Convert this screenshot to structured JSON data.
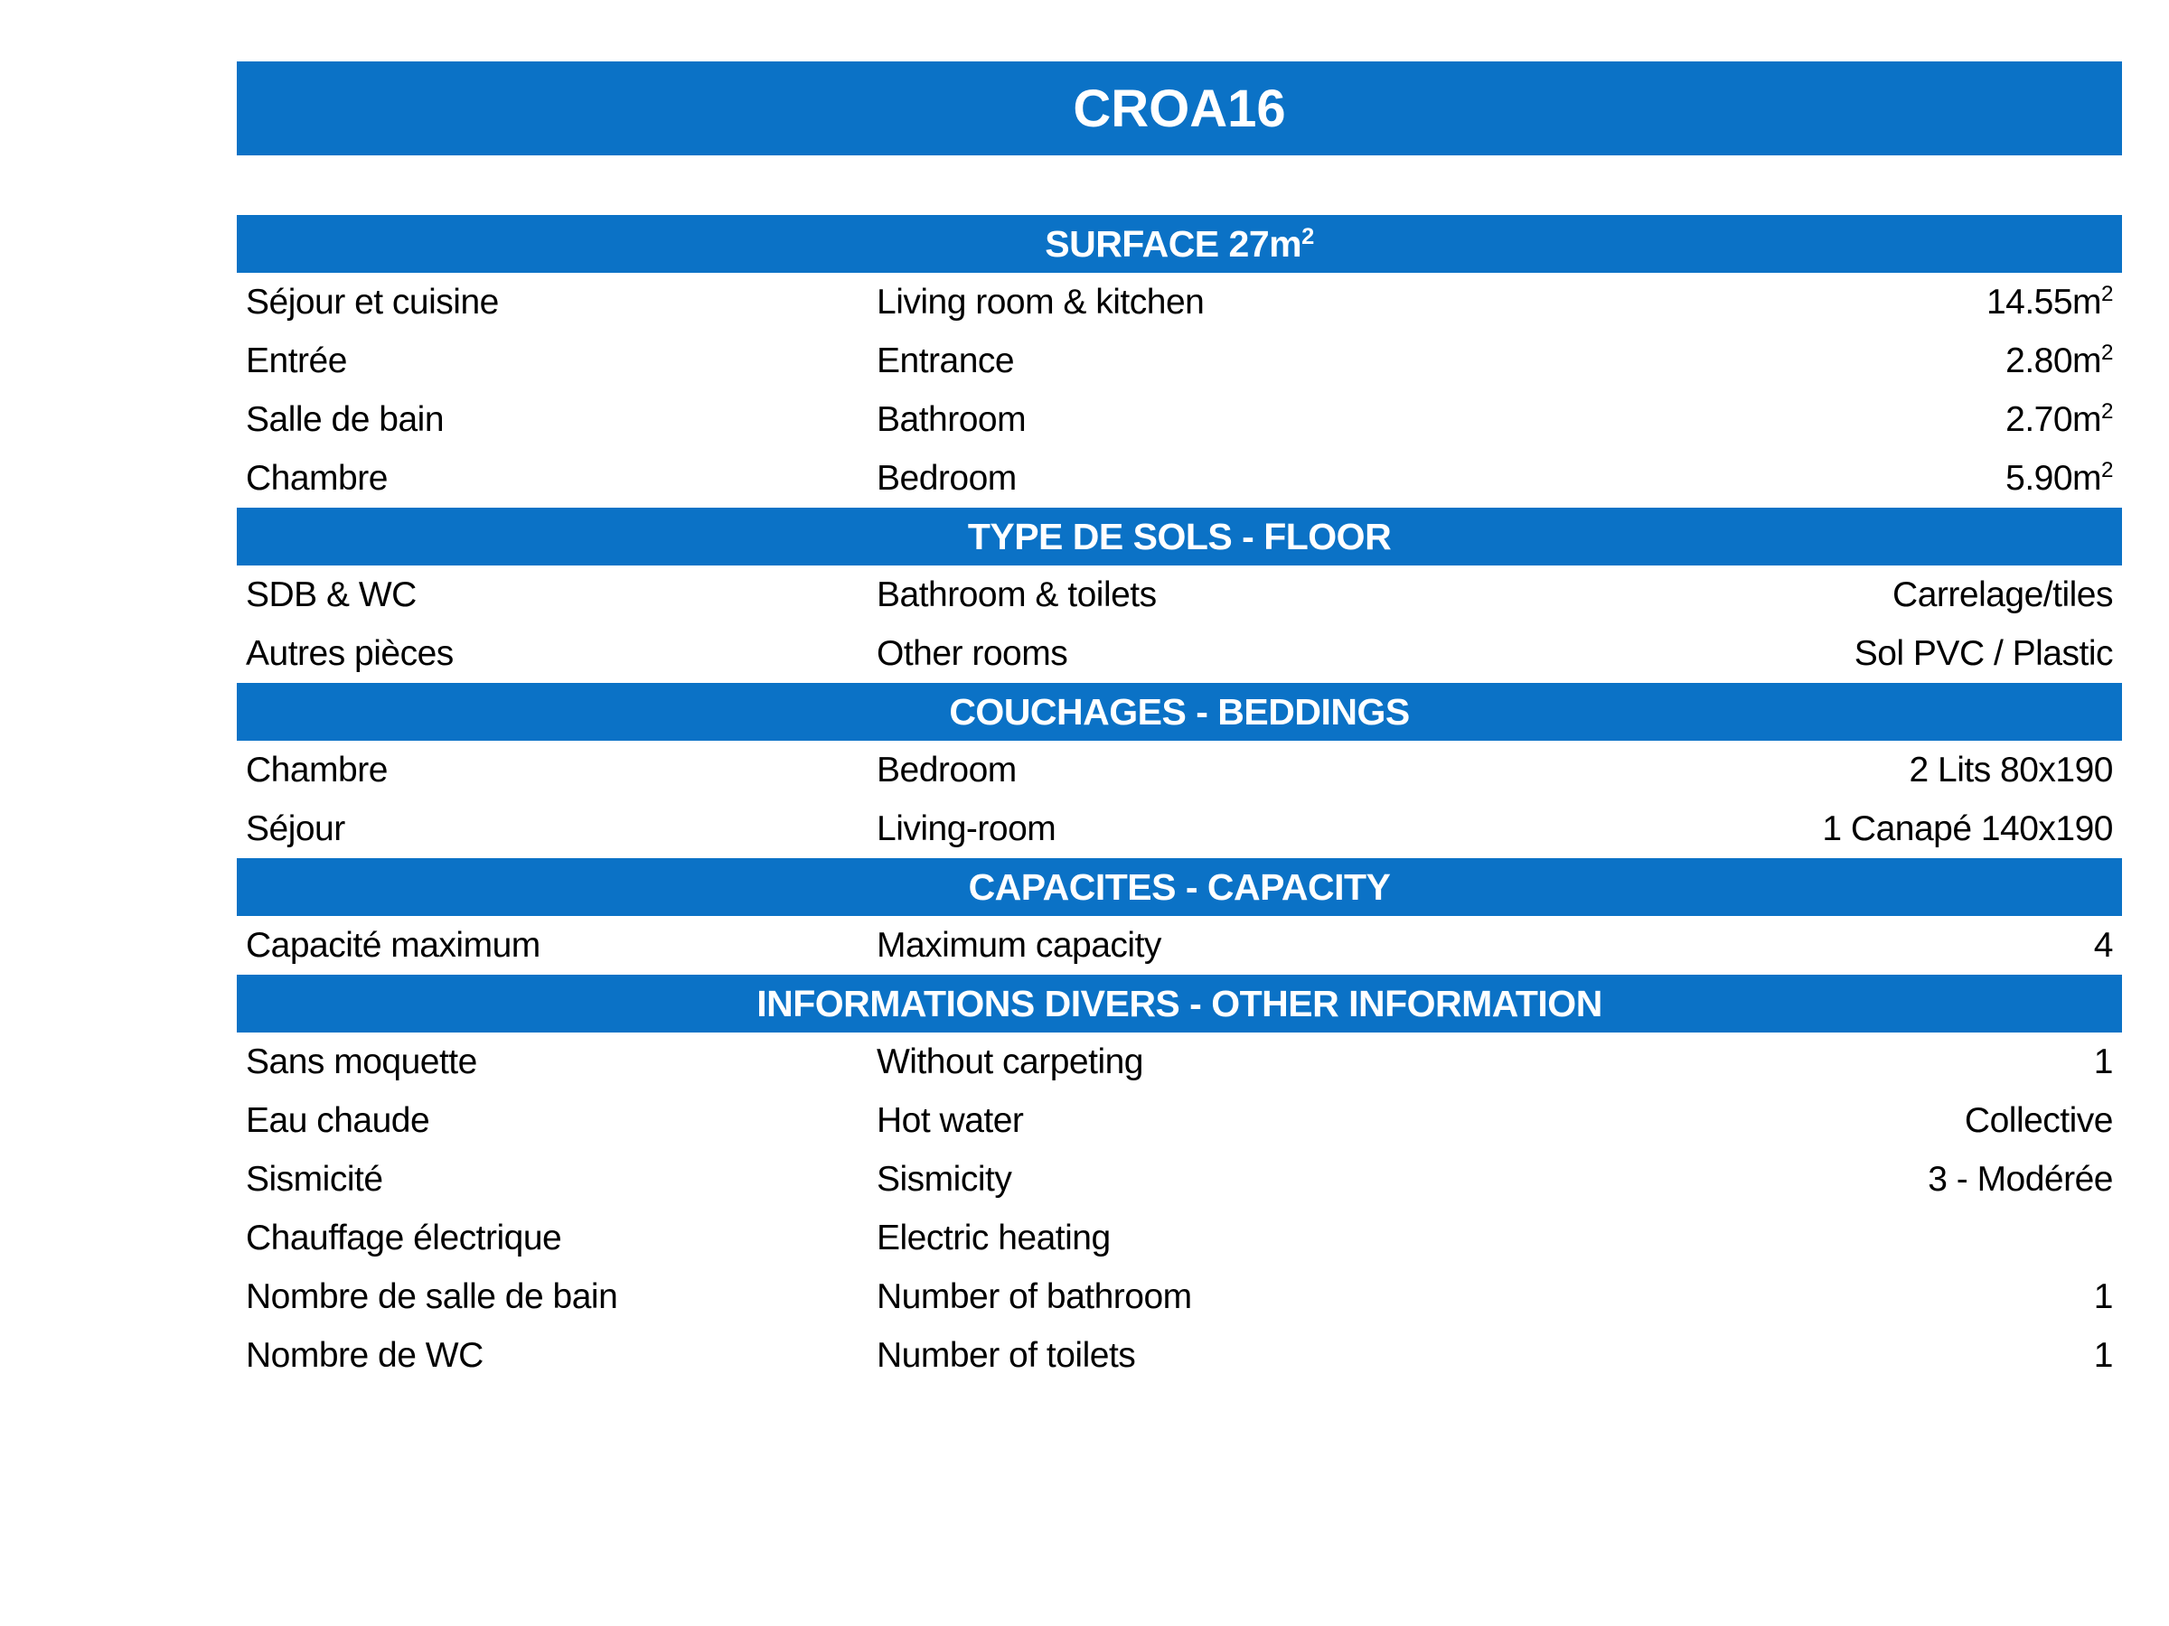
{
  "title": "CROA16",
  "colors": {
    "header_bg": "#0b72c6",
    "header_text": "#ffffff",
    "body_text": "#000000",
    "page_bg": "#ffffff"
  },
  "sections": [
    {
      "header": "SURFACE 27m",
      "header_sup": "2",
      "rows": [
        {
          "fr": "Séjour et cuisine",
          "en": "Living room & kitchen",
          "value": "14.55m",
          "value_sup": "2"
        },
        {
          "fr": "Entrée",
          "en": "Entrance",
          "value": "2.80m",
          "value_sup": "2"
        },
        {
          "fr": "Salle de bain",
          "en": "Bathroom",
          "value": "2.70m",
          "value_sup": "2"
        },
        {
          "fr": "Chambre",
          "en": "Bedroom",
          "value": "5.90m",
          "value_sup": "2"
        }
      ]
    },
    {
      "header": "TYPE DE SOLS - FLOOR",
      "rows": [
        {
          "fr": "SDB & WC",
          "en": "Bathroom & toilets",
          "value": "Carrelage/tiles"
        },
        {
          "fr": "Autres pièces",
          "en": "Other rooms",
          "value": "Sol PVC / Plastic"
        }
      ]
    },
    {
      "header": "COUCHAGES - BEDDINGS",
      "rows": [
        {
          "fr": "Chambre",
          "en": "Bedroom",
          "value": "2 Lits 80x190"
        },
        {
          "fr": "Séjour",
          "en": "Living-room",
          "value": "1 Canapé 140x190"
        }
      ]
    },
    {
      "header": "CAPACITES - CAPACITY",
      "rows": [
        {
          "fr": "Capacité maximum",
          "en": "Maximum capacity",
          "value": "4"
        }
      ]
    },
    {
      "header": "INFORMATIONS DIVERS - OTHER INFORMATION",
      "rows": [
        {
          "fr": "Sans moquette",
          "en": "Without carpeting",
          "value": "1"
        },
        {
          "fr": "Eau chaude",
          "en": "Hot water",
          "value": "Collective"
        },
        {
          "fr": "Sismicité",
          "en": "Sismicity",
          "value": "3 - Modérée"
        },
        {
          "fr": "Chauffage électrique",
          "en": "Electric heating",
          "value": ""
        },
        {
          "fr": "Nombre de salle de bain",
          "en": "Number of bathroom",
          "value": "1"
        },
        {
          "fr": "Nombre de WC",
          "en": "Number of toilets",
          "value": "1"
        }
      ]
    }
  ]
}
